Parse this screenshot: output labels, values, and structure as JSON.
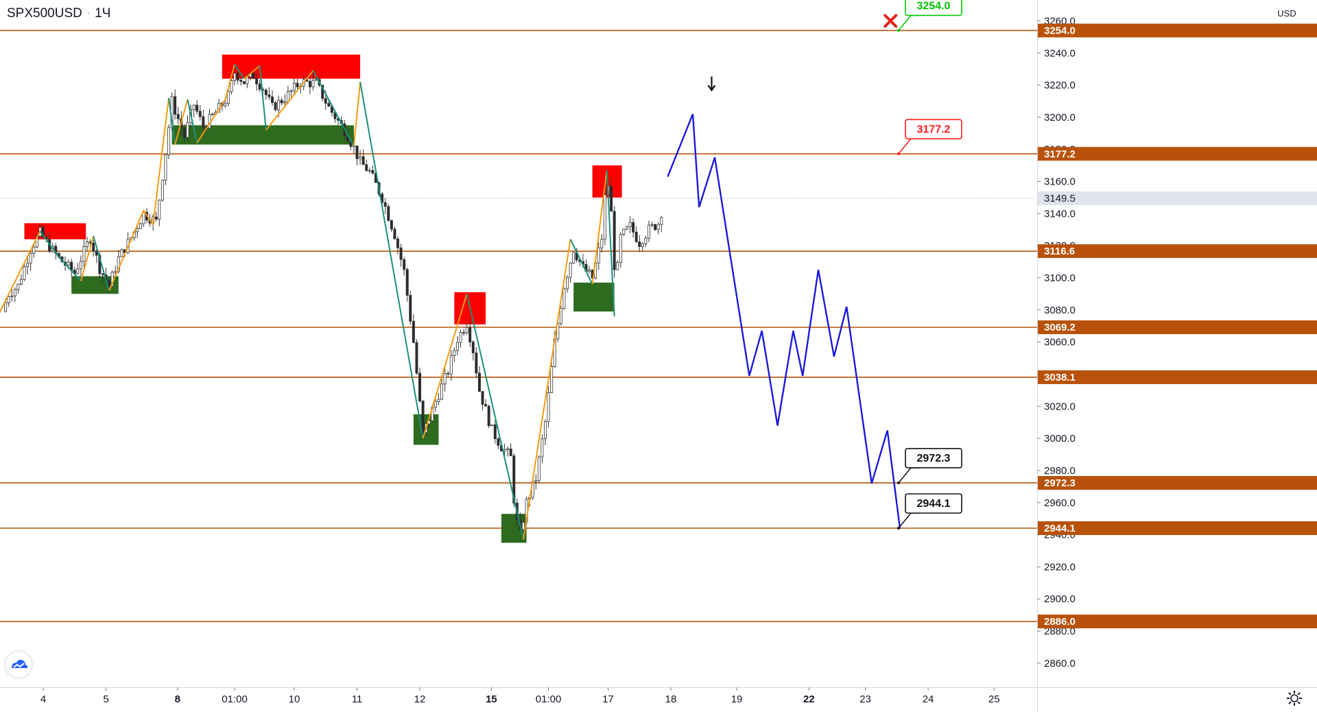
{
  "header": {
    "symbol": "SPX500USD",
    "separator": "·",
    "interval": "1Ч"
  },
  "price_axis": {
    "currency": "USD"
  },
  "colors": {
    "level_line": "#b8520a",
    "bull_candle": "#2b2b2b",
    "zigzag_up": "#f39c12",
    "zigzag_down": "#1a8f7a",
    "supply_zone": "#ff0000",
    "demand_zone": "#2e6b1e",
    "forecast": "#1a1adb",
    "target_up": "#00c800",
    "target_stop": "#ff1a1a"
  },
  "chart_data": {
    "type": "candlestick",
    "title": "",
    "ylim": [
      2845,
      3273
    ],
    "yticks": [
      2860,
      2880,
      2900,
      2920,
      2940,
      2960,
      2980,
      3000,
      3020,
      3040,
      3060,
      3080,
      3100,
      3120,
      3140,
      3160,
      3180,
      3200,
      3220,
      3240,
      3260
    ],
    "ytick_labels": [
      "2860.0",
      "2880.0",
      "2900.0",
      "2920.0",
      "2940.0",
      "2960.0",
      "2980.0",
      "3000.0",
      "3020.0",
      "3040.0",
      "3060.0",
      "3080.0",
      "3100.0",
      "3120.0",
      "3140.0",
      "3160.0",
      "3180.0",
      "3200.0",
      "3220.0",
      "3240.0",
      "3260.0"
    ],
    "xticks": [
      {
        "label": "4",
        "x": 3.0,
        "bold": false
      },
      {
        "label": "5",
        "x": 4.0,
        "bold": false
      },
      {
        "label": "8",
        "x": 5.14,
        "bold": true
      },
      {
        "label": "01:00",
        "x": 6.05,
        "bold": false
      },
      {
        "label": "10",
        "x": 7.0,
        "bold": false
      },
      {
        "label": "11",
        "x": 8.0,
        "bold": false
      },
      {
        "label": "12",
        "x": 9.0,
        "bold": false
      },
      {
        "label": "15",
        "x": 10.14,
        "bold": true
      },
      {
        "label": "01:00",
        "x": 11.05,
        "bold": false
      },
      {
        "label": "17",
        "x": 12.0,
        "bold": false
      },
      {
        "label": "18",
        "x": 13.0,
        "bold": false
      },
      {
        "label": "19",
        "x": 14.05,
        "bold": false
      },
      {
        "label": "22",
        "x": 15.2,
        "bold": true
      },
      {
        "label": "23",
        "x": 16.1,
        "bold": false
      },
      {
        "label": "24",
        "x": 17.1,
        "bold": false
      },
      {
        "label": "25",
        "x": 18.15,
        "bold": false
      }
    ],
    "horizontal_levels": [
      3254.0,
      3177.2,
      3116.6,
      3069.2,
      3038.1,
      2972.3,
      2944.1,
      2886.0
    ],
    "level_labels": [
      "3254.0",
      "3177.2",
      "3116.6",
      "3069.2",
      "3038.1",
      "2972.3",
      "2944.1",
      "2886.0"
    ],
    "last_price": 3149.5,
    "last_price_label": "3149.5",
    "price_path": [
      [
        2.35,
        3079
      ],
      [
        2.45,
        3090
      ],
      [
        2.6,
        3095
      ],
      [
        2.8,
        3118
      ],
      [
        2.95,
        3128
      ],
      [
        3.05,
        3122
      ],
      [
        3.25,
        3112
      ],
      [
        3.5,
        3103
      ],
      [
        3.75,
        3125
      ],
      [
        3.9,
        3106
      ],
      [
        4.05,
        3095
      ],
      [
        4.2,
        3112
      ],
      [
        4.4,
        3125
      ],
      [
        4.6,
        3140
      ],
      [
        4.8,
        3135
      ],
      [
        4.95,
        3178
      ],
      [
        5.05,
        3210
      ],
      [
        5.25,
        3188
      ],
      [
        5.4,
        3208
      ],
      [
        5.55,
        3194
      ],
      [
        5.75,
        3203
      ],
      [
        5.95,
        3213
      ],
      [
        6.05,
        3228
      ],
      [
        6.2,
        3222
      ],
      [
        6.35,
        3226
      ],
      [
        6.5,
        3218
      ],
      [
        6.65,
        3206
      ],
      [
        6.85,
        3212
      ],
      [
        7.1,
        3222
      ],
      [
        7.35,
        3221
      ],
      [
        7.55,
        3206
      ],
      [
        7.8,
        3192
      ],
      [
        7.95,
        3181
      ],
      [
        8.05,
        3172
      ],
      [
        8.2,
        3166
      ],
      [
        8.4,
        3150
      ],
      [
        8.6,
        3127
      ],
      [
        8.75,
        3104
      ],
      [
        8.9,
        3060
      ],
      [
        9.05,
        3002
      ],
      [
        9.25,
        3023
      ],
      [
        9.45,
        3042
      ],
      [
        9.6,
        3062
      ],
      [
        9.75,
        3072
      ],
      [
        9.85,
        3055
      ],
      [
        9.95,
        3030
      ],
      [
        10.15,
        3005
      ],
      [
        10.3,
        2995
      ],
      [
        10.45,
        2988
      ],
      [
        10.52,
        2952
      ],
      [
        10.6,
        2940
      ],
      [
        10.7,
        2960
      ],
      [
        10.85,
        2975
      ],
      [
        11.0,
        3010
      ],
      [
        11.15,
        3060
      ],
      [
        11.3,
        3095
      ],
      [
        11.45,
        3118
      ],
      [
        11.6,
        3106
      ],
      [
        11.75,
        3100
      ],
      [
        11.9,
        3125
      ],
      [
        11.98,
        3165
      ],
      [
        12.05,
        3140
      ],
      [
        12.12,
        3095
      ],
      [
        12.2,
        3125
      ],
      [
        12.35,
        3132
      ],
      [
        12.5,
        3122
      ],
      [
        12.65,
        3130
      ],
      [
        12.8,
        3134
      ],
      [
        12.9,
        3148
      ]
    ],
    "zigzag": [
      {
        "dir": "up",
        "points": [
          [
            2.3,
            3078
          ],
          [
            2.95,
            3129
          ]
        ]
      },
      {
        "dir": "down",
        "points": [
          [
            2.95,
            3129
          ],
          [
            3.25,
            3113
          ],
          [
            3.6,
            3098
          ]
        ]
      },
      {
        "dir": "up",
        "points": [
          [
            3.6,
            3098
          ],
          [
            3.8,
            3126
          ]
        ]
      },
      {
        "dir": "down",
        "points": [
          [
            3.8,
            3126
          ],
          [
            4.05,
            3092
          ]
        ]
      },
      {
        "dir": "up",
        "points": [
          [
            4.05,
            3092
          ],
          [
            4.6,
            3142
          ],
          [
            4.75,
            3133
          ],
          [
            5.0,
            3212
          ]
        ]
      },
      {
        "dir": "down",
        "points": [
          [
            5.0,
            3212
          ],
          [
            5.1,
            3183
          ]
        ]
      },
      {
        "dir": "up",
        "points": [
          [
            5.1,
            3183
          ],
          [
            5.3,
            3211
          ]
        ]
      },
      {
        "dir": "down",
        "points": [
          [
            5.3,
            3211
          ],
          [
            5.45,
            3184
          ]
        ]
      },
      {
        "dir": "up",
        "points": [
          [
            5.45,
            3184
          ],
          [
            5.9,
            3211
          ],
          [
            6.05,
            3233
          ]
        ]
      },
      {
        "dir": "down",
        "points": [
          [
            6.05,
            3233
          ],
          [
            6.2,
            3224
          ]
        ]
      },
      {
        "dir": "up",
        "points": [
          [
            6.2,
            3224
          ],
          [
            6.45,
            3232
          ]
        ]
      },
      {
        "dir": "down",
        "points": [
          [
            6.45,
            3232
          ],
          [
            6.55,
            3192
          ]
        ]
      },
      {
        "dir": "up",
        "points": [
          [
            6.55,
            3192
          ],
          [
            7.3,
            3229
          ]
        ]
      },
      {
        "dir": "down",
        "points": [
          [
            7.3,
            3229
          ],
          [
            7.95,
            3182
          ]
        ]
      },
      {
        "dir": "up",
        "points": [
          [
            7.95,
            3182
          ],
          [
            8.05,
            3222
          ]
        ]
      },
      {
        "dir": "down",
        "points": [
          [
            8.05,
            3222
          ],
          [
            9.05,
            3000
          ]
        ]
      },
      {
        "dir": "up",
        "points": [
          [
            9.05,
            3000
          ],
          [
            9.75,
            3090
          ]
        ]
      },
      {
        "dir": "down",
        "points": [
          [
            9.75,
            3090
          ],
          [
            10.65,
            2937
          ]
        ]
      },
      {
        "dir": "up",
        "points": [
          [
            10.65,
            2937
          ],
          [
            11.4,
            3124
          ]
        ]
      },
      {
        "dir": "down",
        "points": [
          [
            11.4,
            3124
          ],
          [
            11.75,
            3096
          ]
        ]
      },
      {
        "dir": "up",
        "points": [
          [
            11.75,
            3096
          ],
          [
            11.98,
            3167
          ]
        ]
      },
      {
        "dir": "down",
        "points": [
          [
            11.98,
            3167
          ],
          [
            12.1,
            3076
          ]
        ]
      }
    ],
    "zones": [
      {
        "kind": "supply",
        "x0": 2.7,
        "x1": 3.68,
        "y0": 3124,
        "y1": 3134
      },
      {
        "kind": "demand",
        "x0": 3.45,
        "x1": 4.2,
        "y0": 3090,
        "y1": 3101
      },
      {
        "kind": "supply",
        "x0": 5.85,
        "x1": 8.05,
        "y0": 3224,
        "y1": 3239
      },
      {
        "kind": "demand",
        "x0": 5.05,
        "x1": 7.95,
        "y0": 3183,
        "y1": 3195
      },
      {
        "kind": "demand",
        "x0": 8.9,
        "x1": 9.3,
        "y0": 2996,
        "y1": 3015
      },
      {
        "kind": "supply",
        "x0": 9.55,
        "x1": 10.05,
        "y0": 3071,
        "y1": 3091
      },
      {
        "kind": "demand",
        "x0": 10.3,
        "x1": 10.7,
        "y0": 2935,
        "y1": 2953
      },
      {
        "kind": "supply",
        "x0": 11.75,
        "x1": 12.22,
        "y0": 3150,
        "y1": 3170
      },
      {
        "kind": "demand",
        "x0": 11.45,
        "x1": 12.1,
        "y0": 3079,
        "y1": 3097
      }
    ],
    "forecast_path": [
      [
        12.95,
        3163
      ],
      [
        13.35,
        3202
      ],
      [
        13.45,
        3144
      ],
      [
        13.7,
        3175
      ],
      [
        14.25,
        3039
      ],
      [
        14.45,
        3067
      ],
      [
        14.7,
        3008
      ],
      [
        14.95,
        3067
      ],
      [
        15.1,
        3039
      ],
      [
        15.35,
        3105
      ],
      [
        15.6,
        3051
      ],
      [
        15.8,
        3082
      ],
      [
        16.2,
        2972
      ],
      [
        16.45,
        3005
      ],
      [
        16.65,
        2944
      ]
    ],
    "down_arrow": {
      "x": 13.65,
      "y": 3216
    },
    "stop_marker": {
      "x": 16.5,
      "y": 3260
    },
    "callouts": [
      {
        "label": "3254.0",
        "x": 16.65,
        "y": 3254.0,
        "style": "up"
      },
      {
        "label": "3177.2",
        "x": 16.65,
        "y": 3177.2,
        "style": "stop"
      },
      {
        "label": "2972.3",
        "x": 16.65,
        "y": 2972.3,
        "style": "neutral"
      },
      {
        "label": "2944.1",
        "x": 16.65,
        "y": 2944.1,
        "style": "neutral"
      }
    ]
  }
}
